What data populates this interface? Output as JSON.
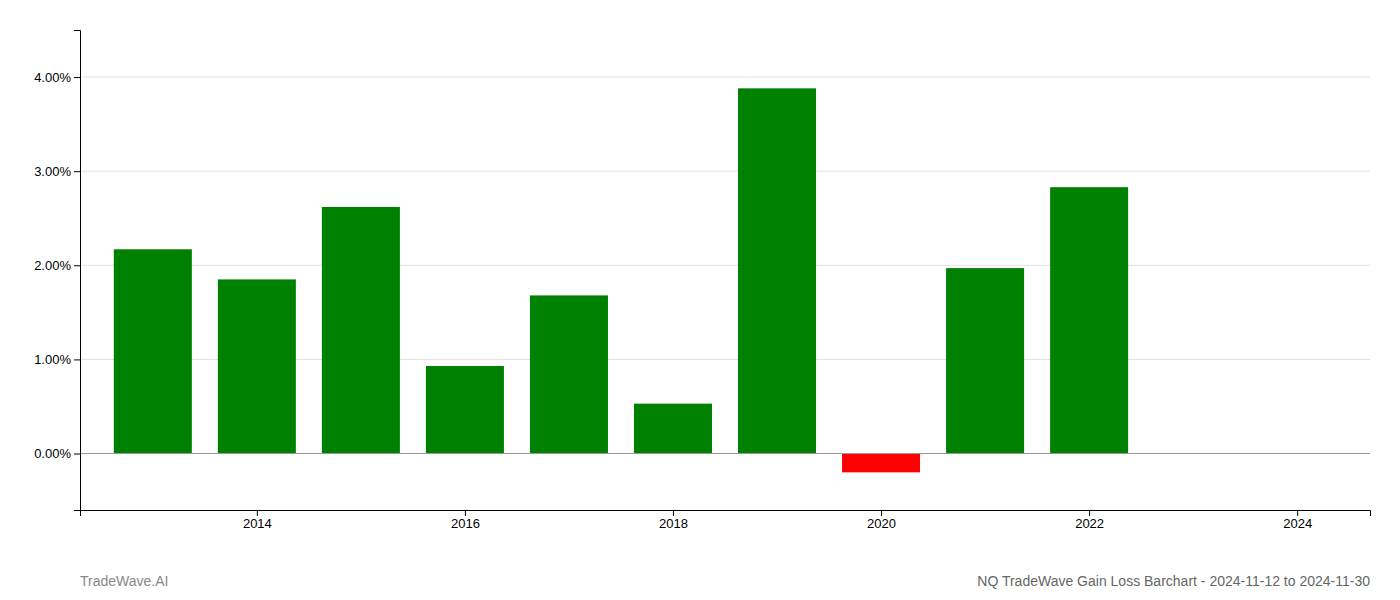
{
  "chart_data": {
    "type": "bar",
    "title": "NQ TradeWave Gain Loss Barchart - 2024-11-12 to 2024-11-30",
    "annotations": [
      "TradeWave.AI"
    ],
    "x": [
      2013,
      2014,
      2015,
      2016,
      2017,
      2018,
      2019,
      2020,
      2021,
      2022
    ],
    "values": [
      0.0217,
      0.0185,
      0.0262,
      0.0093,
      0.0168,
      0.0053,
      0.0388,
      -0.002,
      0.0197,
      0.0283
    ],
    "colors": [
      "#008000",
      "#008000",
      "#008000",
      "#008000",
      "#008000",
      "#008000",
      "#008000",
      "#ff0000",
      "#008000",
      "#008000"
    ],
    "xlim": [
      2012.3,
      2024.7
    ],
    "xticks": [
      2014,
      2016,
      2018,
      2020,
      2022,
      2024
    ],
    "ylim": [
      -0.006,
      0.045
    ],
    "yticks": [
      {
        "value": 0.0,
        "label": "0.00%"
      },
      {
        "value": 0.01,
        "label": "1.00%"
      },
      {
        "value": 0.02,
        "label": "2.00%"
      },
      {
        "value": 0.03,
        "label": "3.00%"
      },
      {
        "value": 0.04,
        "label": "4.00%"
      }
    ],
    "grid": true
  }
}
